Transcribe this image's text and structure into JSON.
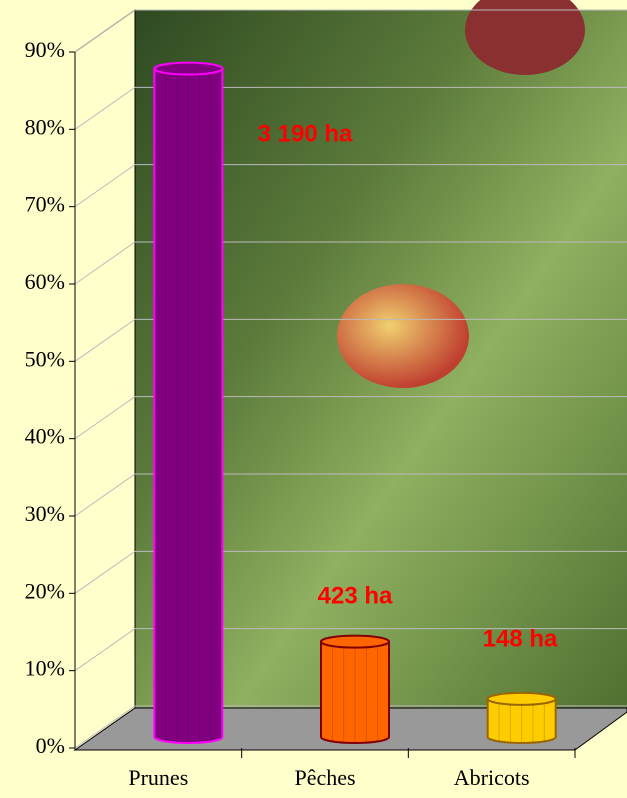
{
  "chart_data": {
    "type": "bar3d",
    "categories": [
      "Prunes",
      "Pêches",
      "Abricots"
    ],
    "values": [
      85.4,
      11.3,
      3.9
    ],
    "colors": [
      "#800080",
      "#ff6600",
      "#ffcc00"
    ],
    "annotations": [
      "3 190 ha",
      "423 ha",
      "148 ha"
    ],
    "ylim": [
      0,
      90
    ],
    "yticks": [
      {
        "value": 0,
        "label": "0%"
      },
      {
        "value": 10,
        "label": "10%"
      },
      {
        "value": 20,
        "label": "20%"
      },
      {
        "value": 30,
        "label": "30%"
      },
      {
        "value": 40,
        "label": "40%"
      },
      {
        "value": 50,
        "label": "50%"
      },
      {
        "value": 60,
        "label": "60%"
      },
      {
        "value": 70,
        "label": "70%"
      },
      {
        "value": 80,
        "label": "80%"
      },
      {
        "value": 90,
        "label": "90%"
      }
    ],
    "grid": true
  }
}
